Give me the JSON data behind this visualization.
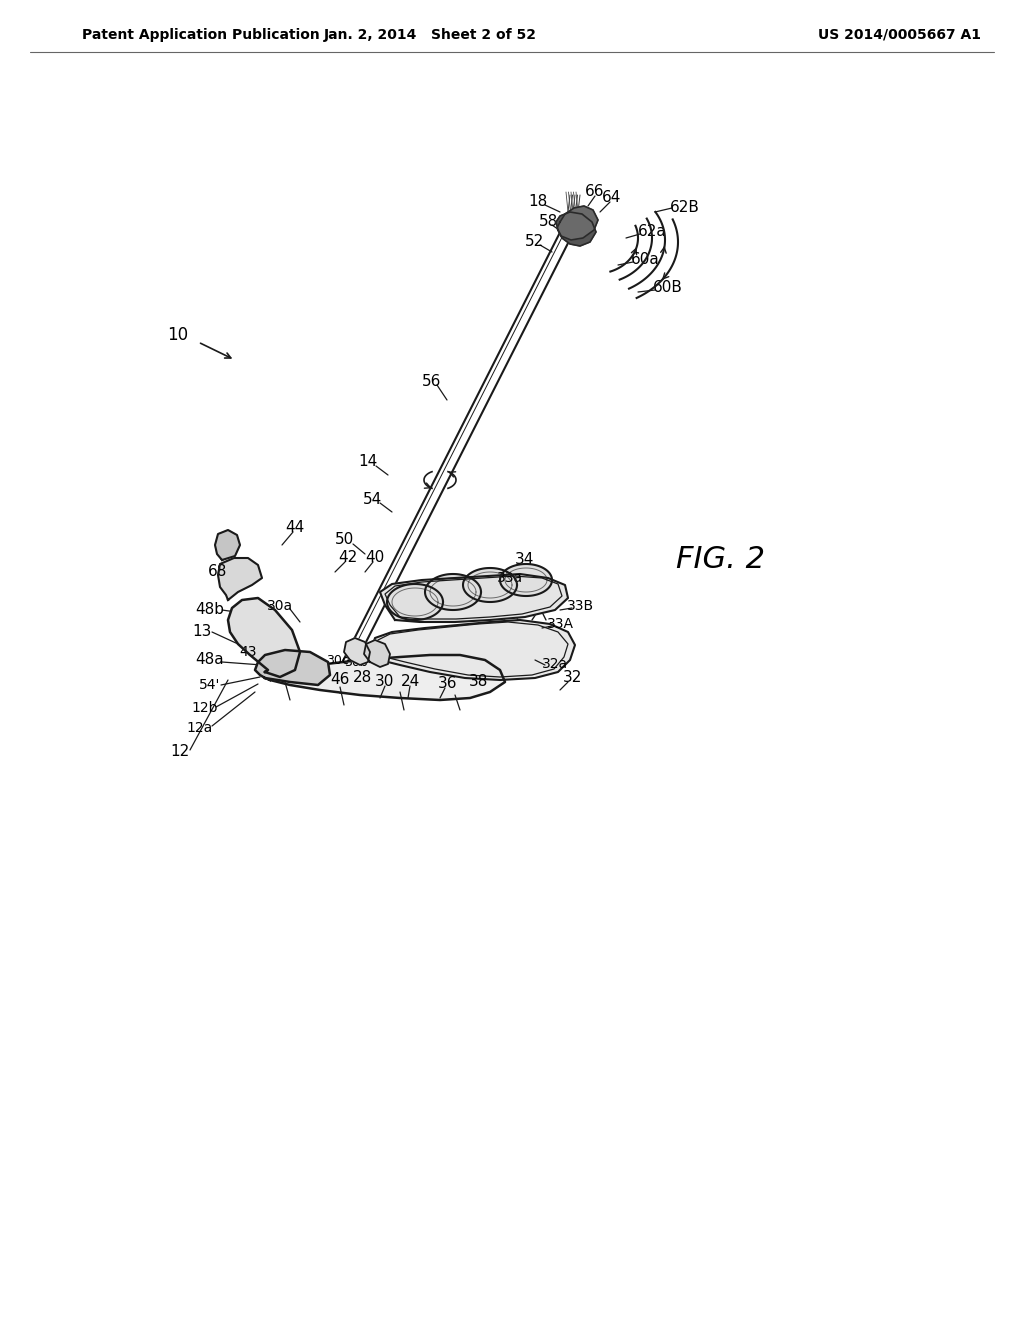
{
  "background_color": "#ffffff",
  "header_left": "Patent Application Publication",
  "header_mid": "Jan. 2, 2014   Sheet 2 of 52",
  "header_right": "US 2014/0005667 A1",
  "fig_label": "FIG. 2",
  "line_color": "#1a1a1a",
  "text_color": "#000000"
}
